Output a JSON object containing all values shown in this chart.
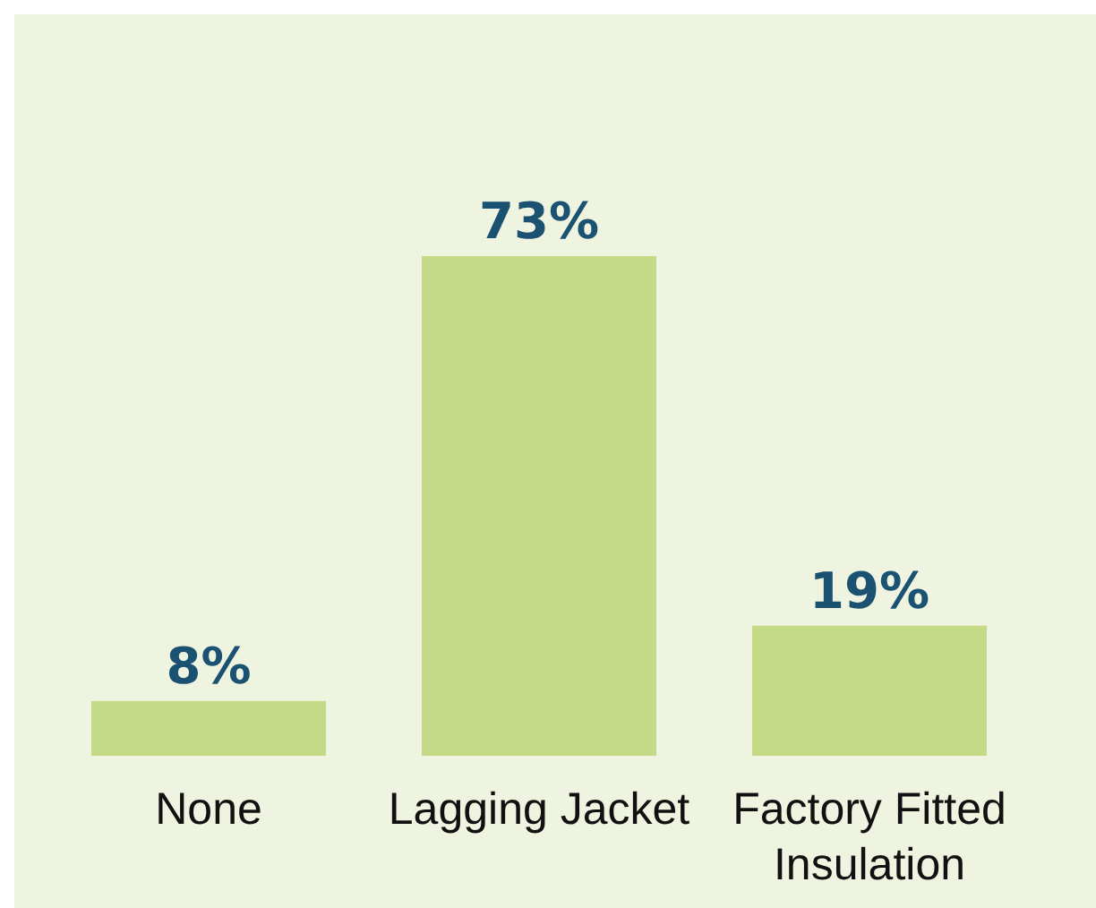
{
  "chart_data": {
    "type": "bar",
    "categories": [
      "None",
      "Lagging Jacket",
      "Factory Fitted Insulation"
    ],
    "values": [
      8,
      73,
      19
    ],
    "value_labels": [
      "8%",
      "73%",
      "19%"
    ],
    "color": "#c5da86"
  }
}
